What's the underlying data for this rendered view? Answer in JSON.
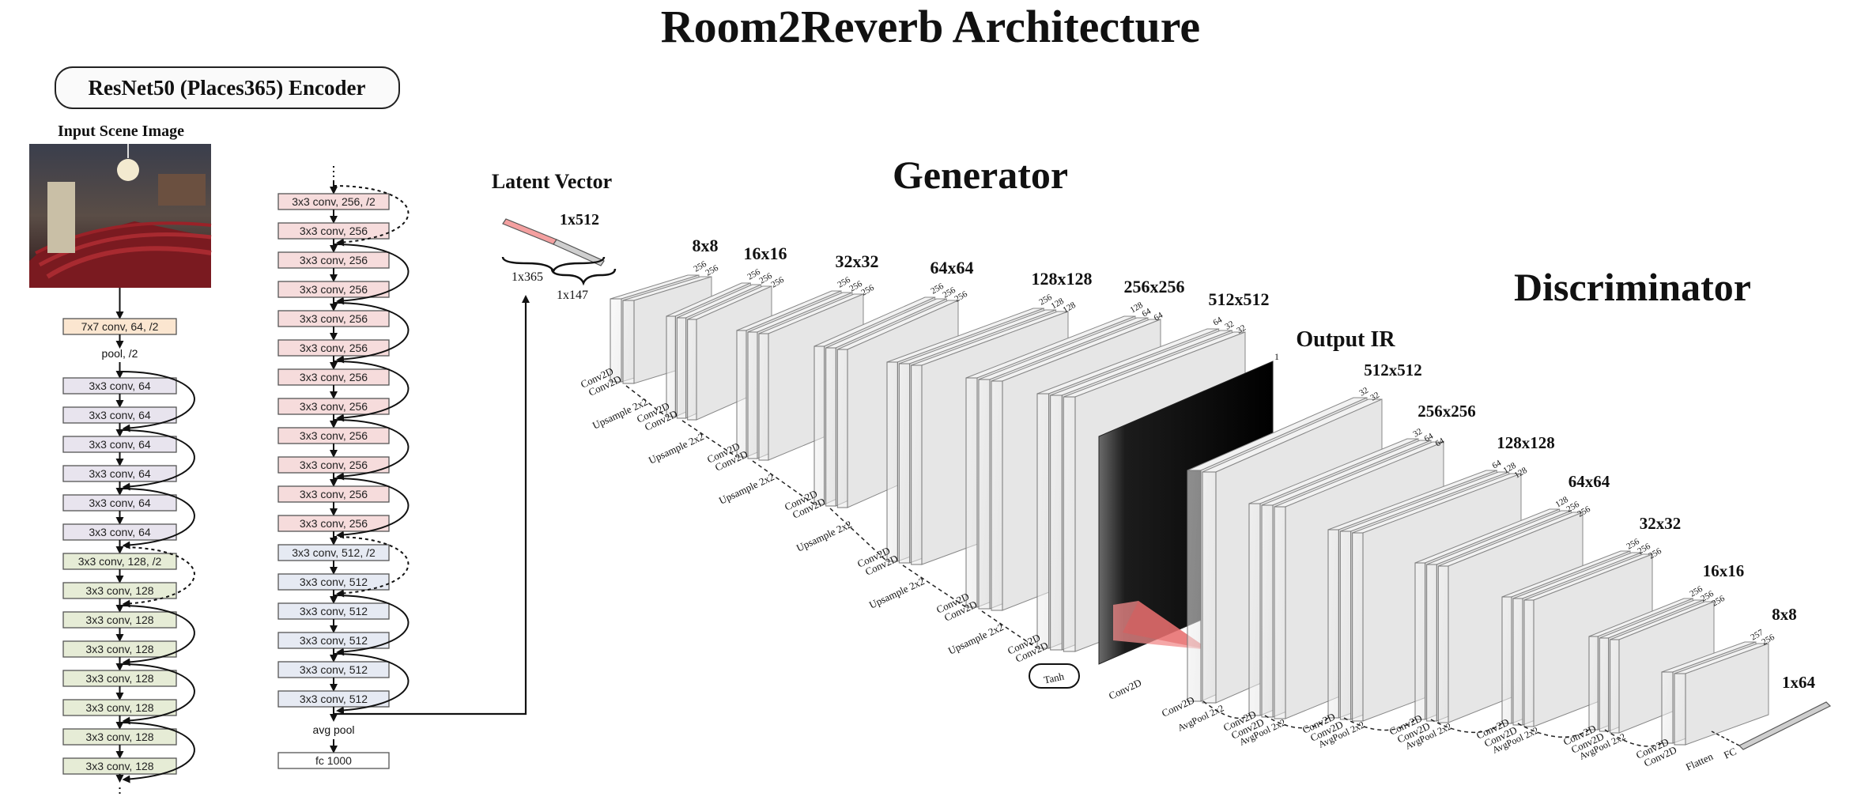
{
  "title": "Room2Reverb Architecture",
  "encoder": {
    "title": "ResNet50 (Places365) Encoder",
    "input_label": "Input Scene Image",
    "col1": [
      "7x7 conv, 64, /2",
      "pool, /2",
      "3x3 conv, 64",
      "3x3 conv, 64",
      "3x3 conv, 64",
      "3x3 conv, 64",
      "3x3 conv, 64",
      "3x3 conv, 64",
      "3x3 conv, 128, /2",
      "3x3 conv, 128",
      "3x3 conv, 128",
      "3x3 conv, 128",
      "3x3 conv, 128",
      "3x3 conv, 128",
      "3x3 conv, 128",
      "3x3 conv, 128"
    ],
    "col2": [
      "3x3 conv, 256, /2",
      "3x3 conv, 256",
      "3x3 conv, 256",
      "3x3 conv, 256",
      "3x3 conv, 256",
      "3x3 conv, 256",
      "3x3 conv, 256",
      "3x3 conv, 256",
      "3x3 conv, 256",
      "3x3 conv, 256",
      "3x3 conv, 256",
      "3x3 conv, 256",
      "3x3 conv, 512, /2",
      "3x3 conv, 512",
      "3x3 conv, 512",
      "3x3 conv, 512",
      "3x3 conv, 512",
      "3x3 conv, 512",
      "avg pool",
      "fc 1000"
    ],
    "colors": {
      "orange": "#fbe6d0",
      "purple": "#e8e4ee",
      "green": "#e6ecd6",
      "pink": "#f6dcdc",
      "blue": "#e6eaf3",
      "white": "#ffffff"
    }
  },
  "latent": {
    "title": "Latent Vector",
    "size": "1x512",
    "part1": "1x365",
    "part2": "1x147",
    "color_red": "#f4a0a0"
  },
  "generator": {
    "title": "Generator",
    "sizes": [
      "8x8",
      "16x16",
      "32x32",
      "64x64",
      "128x128",
      "256x256",
      "512x512"
    ],
    "channels": [
      [
        "256",
        "256"
      ],
      [
        "256",
        "256",
        "256"
      ],
      [
        "256",
        "256",
        "256"
      ],
      [
        "256",
        "256",
        "256"
      ],
      [
        "256",
        "128",
        "128"
      ],
      [
        "128",
        "64",
        "64"
      ],
      [
        "64",
        "32",
        "32"
      ]
    ],
    "conv_label": "Conv2D",
    "upsample_label": "Upsample 2x2",
    "tanh_label": "Tanh"
  },
  "output_ir": {
    "title": "Output IR",
    "channels": "1"
  },
  "discriminator": {
    "title": "Discriminator",
    "sizes": [
      "512x512",
      "256x256",
      "128x128",
      "64x64",
      "32x32",
      "16x16",
      "8x8",
      "1x64"
    ],
    "channels": [
      [
        "32",
        "32"
      ],
      [
        "32",
        "64",
        "64"
      ],
      [
        "64",
        "128",
        "128"
      ],
      [
        "128",
        "256",
        "256"
      ],
      [
        "256",
        "256",
        "256"
      ],
      [
        "256",
        "256",
        "256"
      ],
      [
        "257",
        "256"
      ]
    ],
    "conv_label": "Conv2D",
    "pool_label": "AvgPool 2x2",
    "flatten_label": "Flatten",
    "fc_label": "FC"
  }
}
